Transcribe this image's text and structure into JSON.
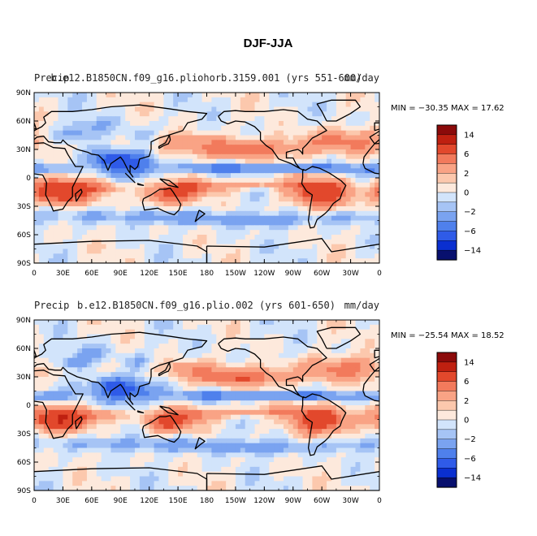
{
  "chart_data": {
    "type": "heatmap",
    "title": "DJF-JJA",
    "x_ticks": [
      "0",
      "30E",
      "60E",
      "90E",
      "120E",
      "150E",
      "180",
      "150W",
      "120W",
      "90W",
      "60W",
      "30W",
      "0"
    ],
    "y_ticks": [
      "90N",
      "60N",
      "30N",
      "0",
      "30S",
      "60S",
      "90S"
    ],
    "xlim": [
      0,
      360
    ],
    "ylim": [
      -90,
      90
    ],
    "palette": [
      "#08106e",
      "#0a2fd0",
      "#2f5be8",
      "#4f80ec",
      "#7aa3f0",
      "#a6c4f5",
      "#d2e4fb",
      "#fde9dc",
      "#fcc8ad",
      "#f9a385",
      "#f27a5c",
      "#e2482c",
      "#bf2010",
      "#8b0a0a"
    ],
    "colorbar_labels": [
      "14",
      "6",
      "2",
      "0",
      "−2",
      "−6",
      "−14"
    ],
    "panels": [
      {
        "id": "top",
        "left_label": "Precip",
        "center_label": "b.e12.B1850CN.f09_g16.pliohorb.3159.001 (yrs 551-600)",
        "right_label": "mm/day",
        "min_max": "MIN = −30.35  MAX =  17.62",
        "min": -30.35,
        "max": 17.62
      },
      {
        "id": "bottom",
        "left_label": "Precip",
        "center_label": "b.e12.B1850CN.f09_g16.plio.002 (yrs 601-650)",
        "right_label": "mm/day",
        "min_max": "MIN = −25.54  MAX =  18.52",
        "min": -25.54,
        "max": 18.52
      }
    ]
  }
}
